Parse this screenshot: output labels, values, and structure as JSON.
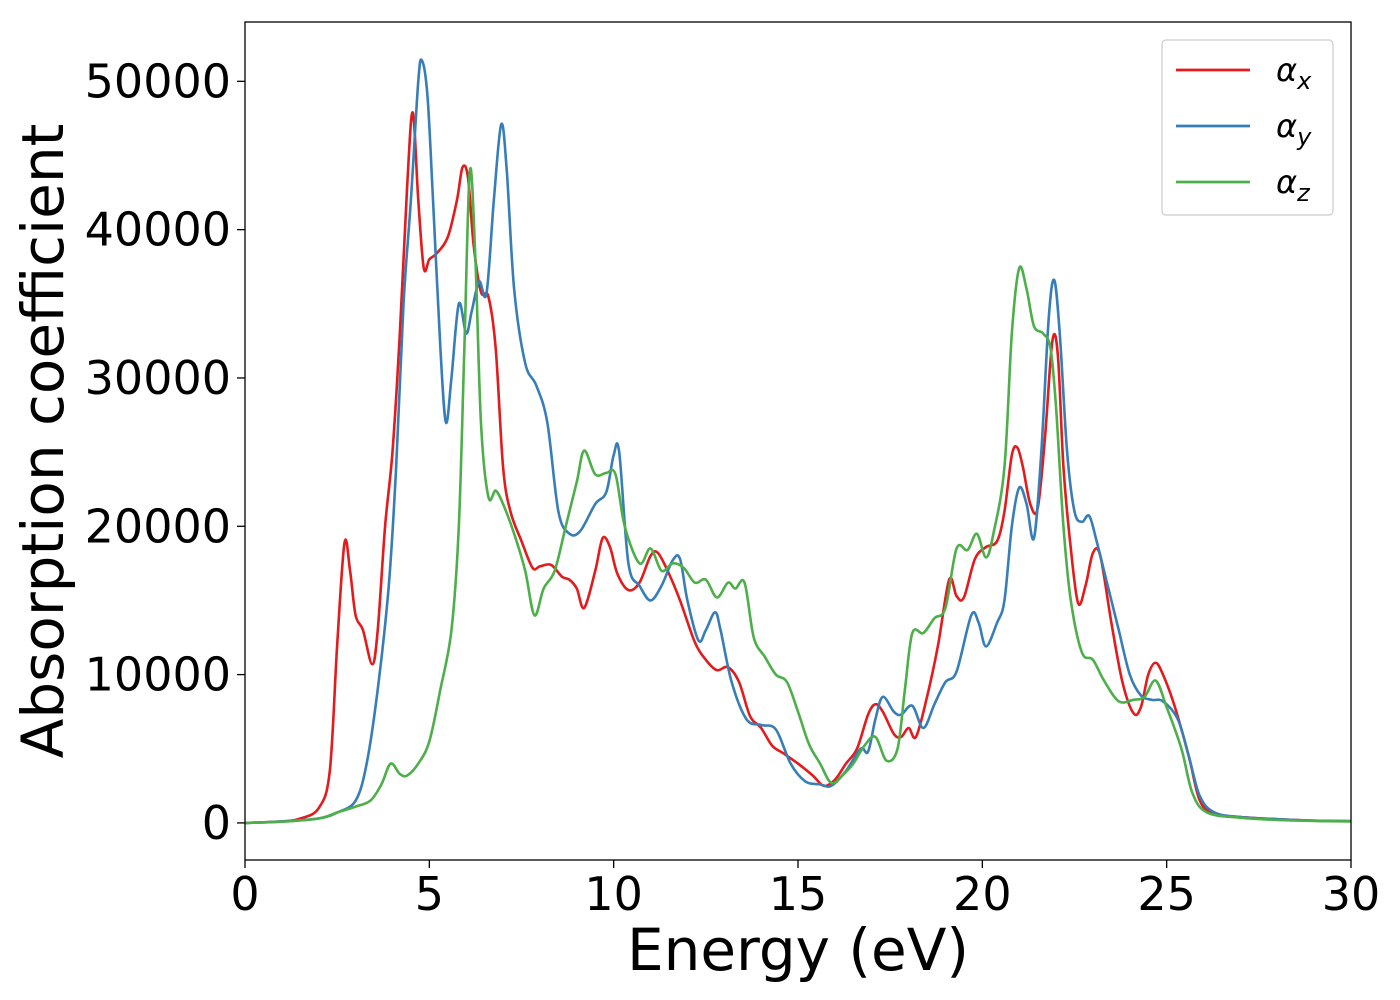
{
  "chart_data": {
    "type": "line",
    "title": "",
    "xlabel": "Energy (eV)",
    "ylabel": "Absorption coefficient",
    "xlim": [
      0,
      30
    ],
    "ylim": [
      -2500,
      54000
    ],
    "xticks": [
      0,
      5,
      10,
      15,
      20,
      25,
      30
    ],
    "yticks": [
      0,
      10000,
      20000,
      30000,
      40000,
      50000
    ],
    "grid": false,
    "legend": "top-right",
    "series": [
      {
        "name": "αx",
        "base": "α",
        "sub": "x",
        "color": "#e41a1c",
        "points": [
          [
            0,
            0
          ],
          [
            1,
            100
          ],
          [
            1.5,
            300
          ],
          [
            2,
            1000
          ],
          [
            2.3,
            3500
          ],
          [
            2.5,
            12000
          ],
          [
            2.7,
            18900
          ],
          [
            2.85,
            17000
          ],
          [
            3.0,
            14000
          ],
          [
            3.2,
            13000
          ],
          [
            3.45,
            10700
          ],
          [
            3.6,
            13000
          ],
          [
            3.8,
            20000
          ],
          [
            4.0,
            25000
          ],
          [
            4.2,
            33000
          ],
          [
            4.4,
            43000
          ],
          [
            4.55,
            47900
          ],
          [
            4.7,
            42000
          ],
          [
            4.85,
            37400
          ],
          [
            5.0,
            38000
          ],
          [
            5.2,
            38400
          ],
          [
            5.5,
            39500
          ],
          [
            5.75,
            42000
          ],
          [
            5.9,
            44200
          ],
          [
            6.05,
            43500
          ],
          [
            6.2,
            39000
          ],
          [
            6.4,
            35800
          ],
          [
            6.6,
            35500
          ],
          [
            6.8,
            32000
          ],
          [
            7.0,
            24000
          ],
          [
            7.2,
            21000
          ],
          [
            7.5,
            19000
          ],
          [
            7.8,
            17200
          ],
          [
            8.0,
            17300
          ],
          [
            8.3,
            17400
          ],
          [
            8.6,
            16600
          ],
          [
            8.8,
            16400
          ],
          [
            9.0,
            15800
          ],
          [
            9.2,
            14500
          ],
          [
            9.5,
            17000
          ],
          [
            9.7,
            19200
          ],
          [
            9.9,
            18600
          ],
          [
            10.1,
            16800
          ],
          [
            10.4,
            15700
          ],
          [
            10.7,
            16200
          ],
          [
            11.0,
            18000
          ],
          [
            11.2,
            18200
          ],
          [
            11.5,
            16800
          ],
          [
            11.8,
            15000
          ],
          [
            12.2,
            12200
          ],
          [
            12.5,
            11000
          ],
          [
            12.8,
            10300
          ],
          [
            13.1,
            10500
          ],
          [
            13.4,
            9500
          ],
          [
            13.7,
            7200
          ],
          [
            14.0,
            6400
          ],
          [
            14.3,
            5200
          ],
          [
            14.6,
            4700
          ],
          [
            15.0,
            4000
          ],
          [
            15.4,
            3200
          ],
          [
            15.7,
            2500
          ],
          [
            16.0,
            2900
          ],
          [
            16.3,
            4000
          ],
          [
            16.6,
            5000
          ],
          [
            16.9,
            7300
          ],
          [
            17.1,
            8000
          ],
          [
            17.3,
            7500
          ],
          [
            17.6,
            6000
          ],
          [
            17.8,
            5800
          ],
          [
            18.0,
            6400
          ],
          [
            18.2,
            5800
          ],
          [
            18.5,
            8500
          ],
          [
            18.8,
            12000
          ],
          [
            19.1,
            16400
          ],
          [
            19.3,
            15300
          ],
          [
            19.5,
            15200
          ],
          [
            19.8,
            17800
          ],
          [
            20.1,
            18600
          ],
          [
            20.4,
            19000
          ],
          [
            20.6,
            21000
          ],
          [
            20.8,
            24800
          ],
          [
            20.95,
            25300
          ],
          [
            21.1,
            24000
          ],
          [
            21.3,
            21500
          ],
          [
            21.5,
            21200
          ],
          [
            21.7,
            26000
          ],
          [
            21.9,
            32500
          ],
          [
            22.05,
            31500
          ],
          [
            22.2,
            24000
          ],
          [
            22.4,
            18500
          ],
          [
            22.6,
            14800
          ],
          [
            22.8,
            16000
          ],
          [
            23.0,
            18200
          ],
          [
            23.2,
            18000
          ],
          [
            23.5,
            13500
          ],
          [
            23.8,
            9500
          ],
          [
            24.1,
            7400
          ],
          [
            24.3,
            7800
          ],
          [
            24.5,
            10000
          ],
          [
            24.7,
            10800
          ],
          [
            24.9,
            10000
          ],
          [
            25.2,
            8000
          ],
          [
            25.6,
            4500
          ],
          [
            25.9,
            1500
          ],
          [
            26.3,
            600
          ],
          [
            27,
            400
          ],
          [
            28,
            250
          ],
          [
            29,
            150
          ],
          [
            30,
            120
          ]
        ]
      },
      {
        "name": "αy",
        "base": "α",
        "sub": "y",
        "color": "#377eb8",
        "points": [
          [
            0,
            0
          ],
          [
            1,
            100
          ],
          [
            2,
            300
          ],
          [
            2.5,
            700
          ],
          [
            3.0,
            1500
          ],
          [
            3.3,
            4000
          ],
          [
            3.6,
            9000
          ],
          [
            3.9,
            16000
          ],
          [
            4.1,
            24000
          ],
          [
            4.3,
            35000
          ],
          [
            4.5,
            42000
          ],
          [
            4.7,
            50000
          ],
          [
            4.8,
            51400
          ],
          [
            4.95,
            49000
          ],
          [
            5.1,
            42000
          ],
          [
            5.3,
            32000
          ],
          [
            5.45,
            27000
          ],
          [
            5.6,
            30000
          ],
          [
            5.8,
            35000
          ],
          [
            6.0,
            33000
          ],
          [
            6.15,
            34500
          ],
          [
            6.35,
            36500
          ],
          [
            6.55,
            35700
          ],
          [
            6.75,
            42000
          ],
          [
            6.95,
            47100
          ],
          [
            7.1,
            44000
          ],
          [
            7.3,
            36000
          ],
          [
            7.6,
            31000
          ],
          [
            7.9,
            29500
          ],
          [
            8.2,
            27000
          ],
          [
            8.5,
            21000
          ],
          [
            8.8,
            19500
          ],
          [
            9.1,
            19700
          ],
          [
            9.5,
            21500
          ],
          [
            9.8,
            22300
          ],
          [
            10.0,
            24800
          ],
          [
            10.15,
            25000
          ],
          [
            10.4,
            17500
          ],
          [
            10.7,
            16000
          ],
          [
            11.0,
            15000
          ],
          [
            11.3,
            16000
          ],
          [
            11.6,
            17700
          ],
          [
            11.8,
            17800
          ],
          [
            12.0,
            15000
          ],
          [
            12.3,
            12300
          ],
          [
            12.5,
            13000
          ],
          [
            12.75,
            14200
          ],
          [
            12.9,
            13000
          ],
          [
            13.2,
            9500
          ],
          [
            13.6,
            7000
          ],
          [
            14.0,
            6600
          ],
          [
            14.4,
            6300
          ],
          [
            14.8,
            4000
          ],
          [
            15.2,
            2800
          ],
          [
            15.6,
            2600
          ],
          [
            15.9,
            2500
          ],
          [
            16.3,
            3500
          ],
          [
            16.7,
            5000
          ],
          [
            16.9,
            4800
          ],
          [
            17.1,
            7000
          ],
          [
            17.3,
            8500
          ],
          [
            17.6,
            7500
          ],
          [
            17.8,
            7300
          ],
          [
            18.1,
            7900
          ],
          [
            18.4,
            6400
          ],
          [
            18.7,
            8000
          ],
          [
            19.0,
            9500
          ],
          [
            19.3,
            10200
          ],
          [
            19.7,
            14000
          ],
          [
            19.9,
            13500
          ],
          [
            20.1,
            11900
          ],
          [
            20.4,
            13500
          ],
          [
            20.6,
            15000
          ],
          [
            20.8,
            20000
          ],
          [
            21.0,
            22600
          ],
          [
            21.2,
            21500
          ],
          [
            21.4,
            19200
          ],
          [
            21.6,
            25000
          ],
          [
            21.8,
            34000
          ],
          [
            21.95,
            36600
          ],
          [
            22.1,
            33000
          ],
          [
            22.3,
            25000
          ],
          [
            22.5,
            21000
          ],
          [
            22.7,
            20300
          ],
          [
            22.9,
            20700
          ],
          [
            23.1,
            19000
          ],
          [
            23.4,
            16000
          ],
          [
            23.7,
            13000
          ],
          [
            24.0,
            10000
          ],
          [
            24.3,
            8600
          ],
          [
            24.6,
            8300
          ],
          [
            24.9,
            8200
          ],
          [
            25.3,
            7000
          ],
          [
            25.6,
            4500
          ],
          [
            25.9,
            1800
          ],
          [
            26.3,
            700
          ],
          [
            27,
            400
          ],
          [
            28,
            250
          ],
          [
            29,
            150
          ],
          [
            30,
            120
          ]
        ]
      },
      {
        "name": "αz",
        "base": "α",
        "sub": "z",
        "color": "#4daf4a",
        "points": [
          [
            0,
            0
          ],
          [
            1,
            80
          ],
          [
            2,
            300
          ],
          [
            2.5,
            700
          ],
          [
            3.0,
            1100
          ],
          [
            3.4,
            1500
          ],
          [
            3.7,
            2600
          ],
          [
            3.95,
            4000
          ],
          [
            4.2,
            3300
          ],
          [
            4.4,
            3200
          ],
          [
            4.7,
            4000
          ],
          [
            5.0,
            5500
          ],
          [
            5.3,
            9000
          ],
          [
            5.6,
            13000
          ],
          [
            5.8,
            20000
          ],
          [
            5.95,
            32000
          ],
          [
            6.1,
            44000
          ],
          [
            6.25,
            38000
          ],
          [
            6.4,
            27000
          ],
          [
            6.6,
            22000
          ],
          [
            6.8,
            22400
          ],
          [
            7.0,
            21500
          ],
          [
            7.3,
            19500
          ],
          [
            7.6,
            17000
          ],
          [
            7.85,
            14000
          ],
          [
            8.1,
            15800
          ],
          [
            8.4,
            17000
          ],
          [
            8.7,
            20000
          ],
          [
            9.0,
            23000
          ],
          [
            9.2,
            25100
          ],
          [
            9.5,
            23500
          ],
          [
            9.8,
            23600
          ],
          [
            10.05,
            23500
          ],
          [
            10.3,
            20000
          ],
          [
            10.7,
            17500
          ],
          [
            11.0,
            18500
          ],
          [
            11.3,
            17000
          ],
          [
            11.6,
            17500
          ],
          [
            11.9,
            17200
          ],
          [
            12.2,
            16200
          ],
          [
            12.5,
            16400
          ],
          [
            12.8,
            15200
          ],
          [
            13.1,
            16200
          ],
          [
            13.3,
            15800
          ],
          [
            13.55,
            16200
          ],
          [
            13.8,
            12500
          ],
          [
            14.1,
            11200
          ],
          [
            14.4,
            10000
          ],
          [
            14.7,
            9500
          ],
          [
            15.0,
            7500
          ],
          [
            15.3,
            5300
          ],
          [
            15.6,
            4000
          ],
          [
            15.9,
            2700
          ],
          [
            16.2,
            3200
          ],
          [
            16.5,
            4000
          ],
          [
            16.8,
            5200
          ],
          [
            17.1,
            5800
          ],
          [
            17.4,
            4200
          ],
          [
            17.7,
            5000
          ],
          [
            17.9,
            9000
          ],
          [
            18.1,
            12800
          ],
          [
            18.4,
            12800
          ],
          [
            18.7,
            13800
          ],
          [
            19.0,
            14500
          ],
          [
            19.3,
            18500
          ],
          [
            19.6,
            18400
          ],
          [
            19.85,
            19500
          ],
          [
            20.1,
            17900
          ],
          [
            20.3,
            19500
          ],
          [
            20.6,
            24000
          ],
          [
            20.8,
            33000
          ],
          [
            21.0,
            37400
          ],
          [
            21.2,
            36000
          ],
          [
            21.4,
            33500
          ],
          [
            21.65,
            33000
          ],
          [
            21.85,
            32000
          ],
          [
            22.0,
            28000
          ],
          [
            22.2,
            20000
          ],
          [
            22.4,
            15000
          ],
          [
            22.7,
            11500
          ],
          [
            23.0,
            11000
          ],
          [
            23.3,
            9600
          ],
          [
            23.7,
            8200
          ],
          [
            24.1,
            8300
          ],
          [
            24.4,
            8500
          ],
          [
            24.7,
            9600
          ],
          [
            25.0,
            7800
          ],
          [
            25.4,
            5000
          ],
          [
            25.7,
            2000
          ],
          [
            26.1,
            700
          ],
          [
            27,
            350
          ],
          [
            28,
            200
          ],
          [
            29,
            130
          ],
          [
            30,
            100
          ]
        ]
      }
    ]
  }
}
